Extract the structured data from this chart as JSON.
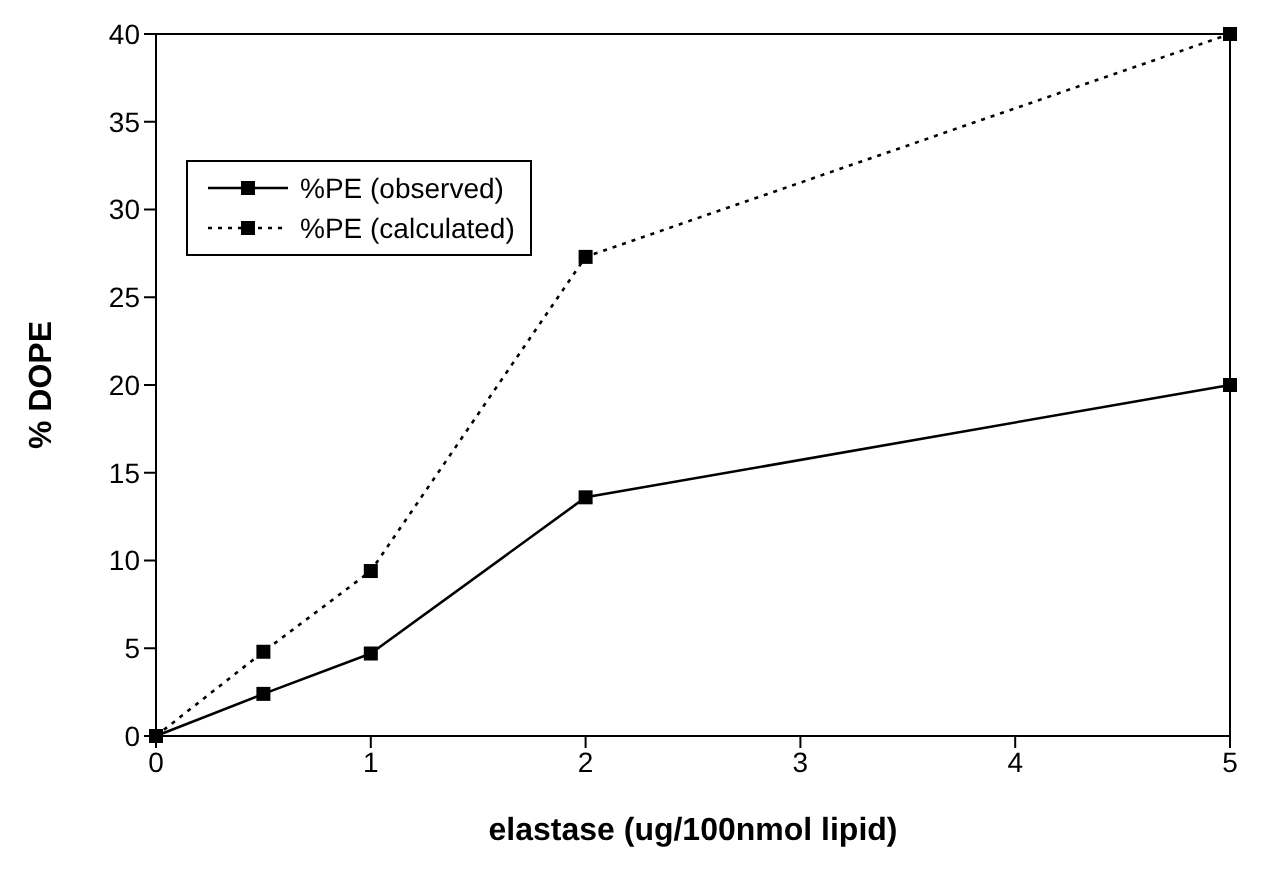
{
  "chart_data": {
    "type": "line",
    "xlabel": "elastase (ug/100nmol lipid)",
    "ylabel": "% DOPE",
    "x": [
      0,
      0.5,
      1,
      2,
      5
    ],
    "series": [
      {
        "name": "%PE (observed)",
        "color": "#000000",
        "values": [
          0,
          2.4,
          4.7,
          13.6,
          20
        ],
        "line_style": "solid"
      },
      {
        "name": "%PE (calculated)",
        "color": "#000000",
        "values": [
          0,
          4.8,
          9.4,
          27.3,
          40
        ],
        "line_style": "dotted"
      }
    ],
    "xlim": [
      0,
      5
    ],
    "xticks": [
      0,
      1,
      2,
      3,
      4,
      5
    ],
    "ylim": [
      0,
      40
    ],
    "yticks": [
      0,
      5,
      10,
      15,
      20,
      25,
      30,
      35,
      40
    ],
    "grid": false,
    "legend": "top left",
    "marker": "square"
  }
}
